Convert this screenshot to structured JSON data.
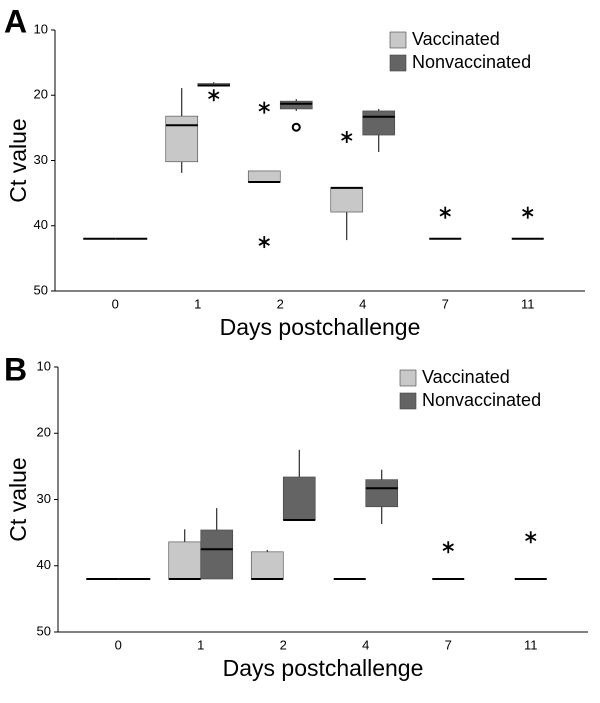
{
  "chart_data": [
    {
      "type": "box",
      "panel_label": "A",
      "xlabel": "Days postchallenge",
      "ylabel": "Ct value",
      "categories": [
        "0",
        "1",
        "2",
        "4",
        "7",
        "11"
      ],
      "ylim": [
        10,
        50
      ],
      "yticks": [
        10,
        20,
        30,
        40,
        50
      ],
      "y_inverted": true,
      "legend": "upper right",
      "series": [
        {
          "name": "Vaccinated",
          "color": "#c8c8c8",
          "boxes": [
            {
              "low": 42,
              "q1": 42,
              "median": 42,
              "q3": 42,
              "high": 42,
              "outliers": []
            },
            {
              "low": 18.9,
              "q1": 23.2,
              "median": 24.6,
              "q3": 30.2,
              "high": 31.9,
              "outliers": []
            },
            {
              "low": 31.6,
              "q1": 31.6,
              "median": 33.3,
              "q3": 33.3,
              "high": 33.3,
              "outliers": [
                {
                  "value": 21.9,
                  "marker": "asterisk"
                },
                {
                  "value": 42.5,
                  "marker": "asterisk"
                }
              ]
            },
            {
              "low": 34.2,
              "q1": 34.2,
              "median": 34.2,
              "q3": 37.9,
              "high": 42.2,
              "outliers": [
                {
                  "value": 26.4,
                  "marker": "asterisk"
                }
              ]
            },
            {
              "low": 42,
              "q1": 42,
              "median": 42,
              "q3": 42,
              "high": 42,
              "outliers": [
                {
                  "value": 38,
                  "marker": "asterisk"
                }
              ]
            },
            {
              "low": 42,
              "q1": 42,
              "median": 42,
              "q3": 42,
              "high": 42,
              "outliers": [
                {
                  "value": 38,
                  "marker": "asterisk"
                }
              ]
            }
          ]
        },
        {
          "name": "Nonvaccinated",
          "color": "#646464",
          "boxes": [
            {
              "low": 42,
              "q1": 42,
              "median": 42,
              "q3": 42,
              "high": 42,
              "outliers": []
            },
            {
              "low": 18,
              "q1": 18.2,
              "median": 18.5,
              "q3": 18.6,
              "high": 18.6,
              "outliers": [
                {
                  "value": 20,
                  "marker": "asterisk"
                }
              ]
            },
            {
              "low": 20.6,
              "q1": 20.9,
              "median": 21.3,
              "q3": 22.1,
              "high": 22.4,
              "outliers": [
                {
                  "value": 24.9,
                  "marker": "circle"
                }
              ]
            },
            {
              "low": 22.1,
              "q1": 22.4,
              "median": 23.3,
              "q3": 26.1,
              "high": 28.7,
              "outliers": []
            },
            null,
            null
          ]
        }
      ]
    },
    {
      "type": "box",
      "panel_label": "B",
      "xlabel": "Days postchallenge",
      "ylabel": "Ct value",
      "categories": [
        "0",
        "1",
        "2",
        "4",
        "7",
        "11"
      ],
      "ylim": [
        10,
        50
      ],
      "yticks": [
        10,
        20,
        30,
        40,
        50
      ],
      "y_inverted": true,
      "legend": "upper right",
      "series": [
        {
          "name": "Vaccinated",
          "color": "#c8c8c8",
          "boxes": [
            {
              "low": 42,
              "q1": 42,
              "median": 42,
              "q3": 42,
              "high": 42,
              "outliers": []
            },
            {
              "low": 34.5,
              "q1": 36.4,
              "median": 42,
              "q3": 42,
              "high": 42,
              "outliers": []
            },
            {
              "low": 37.6,
              "q1": 37.9,
              "median": 42,
              "q3": 42,
              "high": 42,
              "outliers": []
            },
            {
              "low": 42,
              "q1": 42,
              "median": 42,
              "q3": 42,
              "high": 42,
              "outliers": []
            },
            {
              "low": 42,
              "q1": 42,
              "median": 42,
              "q3": 42,
              "high": 42,
              "outliers": [
                {
                  "value": 37.2,
                  "marker": "asterisk"
                }
              ]
            },
            {
              "low": 42,
              "q1": 42,
              "median": 42,
              "q3": 42,
              "high": 42,
              "outliers": [
                {
                  "value": 35.7,
                  "marker": "asterisk"
                }
              ]
            }
          ]
        },
        {
          "name": "Nonvaccinated",
          "color": "#646464",
          "boxes": [
            {
              "low": 42,
              "q1": 42,
              "median": 42,
              "q3": 42,
              "high": 42,
              "outliers": []
            },
            {
              "low": 31.3,
              "q1": 34.6,
              "median": 37.5,
              "q3": 42,
              "high": 42,
              "outliers": []
            },
            {
              "low": 22.5,
              "q1": 26.6,
              "median": 33.1,
              "q3": 33.1,
              "high": 33.1,
              "outliers": []
            },
            {
              "low": 25.5,
              "q1": 27,
              "median": 28.3,
              "q3": 31.1,
              "high": 33.7,
              "outliers": []
            },
            null,
            null
          ]
        }
      ]
    }
  ]
}
